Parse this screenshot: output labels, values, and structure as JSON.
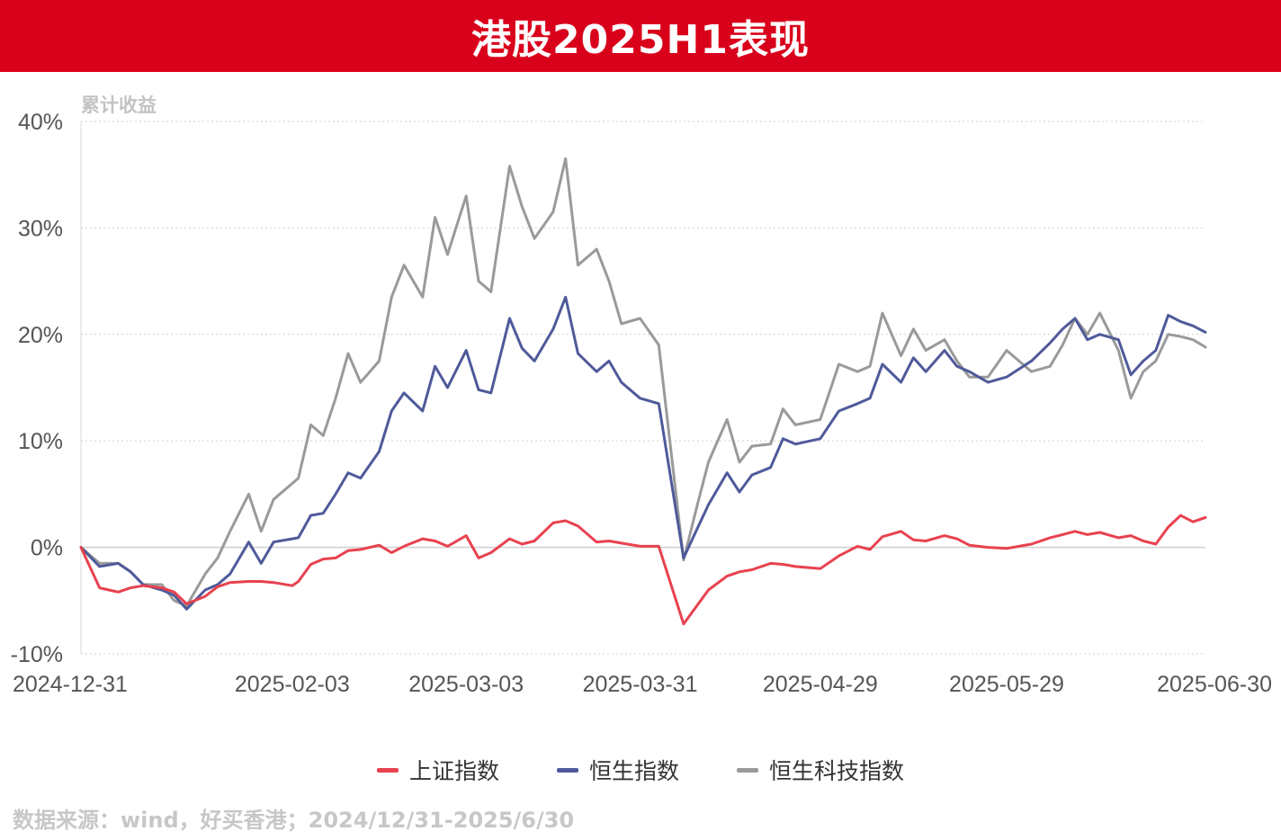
{
  "header": {
    "title": "港股2025H1表现"
  },
  "source": "数据来源：wind，好买香港；2024/12/31-2025/6/30",
  "chart_data": {
    "type": "line",
    "ylabel": "累计收益",
    "xlabel": "",
    "ylim": [
      -10,
      40
    ],
    "yticks": [
      "-10%",
      "0%",
      "10%",
      "20%",
      "30%",
      "40%"
    ],
    "yticks_values": [
      -10,
      0,
      10,
      20,
      30,
      40
    ],
    "xticks": [
      "2024-12-31",
      "2025-02-03",
      "2025-03-03",
      "2025-03-31",
      "2025-04-29",
      "2025-05-29",
      "2025-06-30"
    ],
    "grid": "horizontal dotted",
    "legend_position": "bottom",
    "series": [
      {
        "name": "上证指数",
        "color": "#e8424f",
        "points": [
          [
            "2024-12-31",
            0
          ],
          [
            "2025-01-03",
            -3.8
          ],
          [
            "2025-01-06",
            -4.2
          ],
          [
            "2025-01-08",
            -3.8
          ],
          [
            "2025-01-10",
            -3.6
          ],
          [
            "2025-01-13",
            -3.8
          ],
          [
            "2025-01-15",
            -4.2
          ],
          [
            "2025-01-17",
            -5.3
          ],
          [
            "2025-01-20",
            -4.6
          ],
          [
            "2025-01-22",
            -3.7
          ],
          [
            "2025-01-24",
            -3.3
          ],
          [
            "2025-01-27",
            -3.2
          ],
          [
            "2025-01-29",
            -3.2
          ],
          [
            "2025-01-31",
            -3.3
          ],
          [
            "2025-02-03",
            -3.6
          ],
          [
            "2025-02-04",
            -3.2
          ],
          [
            "2025-02-06",
            -1.6
          ],
          [
            "2025-02-08",
            -1.1
          ],
          [
            "2025-02-10",
            -1.0
          ],
          [
            "2025-02-12",
            -0.3
          ],
          [
            "2025-02-14",
            -0.2
          ],
          [
            "2025-02-17",
            0.2
          ],
          [
            "2025-02-19",
            -0.5
          ],
          [
            "2025-02-21",
            0.1
          ],
          [
            "2025-02-24",
            0.8
          ],
          [
            "2025-02-26",
            0.6
          ],
          [
            "2025-02-28",
            0.1
          ],
          [
            "2025-03-03",
            1.1
          ],
          [
            "2025-03-05",
            -1.0
          ],
          [
            "2025-03-07",
            -0.5
          ],
          [
            "2025-03-10",
            0.8
          ],
          [
            "2025-03-12",
            0.3
          ],
          [
            "2025-03-14",
            0.6
          ],
          [
            "2025-03-17",
            2.3
          ],
          [
            "2025-03-19",
            2.5
          ],
          [
            "2025-03-21",
            2.0
          ],
          [
            "2025-03-24",
            0.5
          ],
          [
            "2025-03-26",
            0.6
          ],
          [
            "2025-03-28",
            0.4
          ],
          [
            "2025-03-31",
            0.1
          ],
          [
            "2025-04-03",
            0.1
          ],
          [
            "2025-04-07",
            -7.2
          ],
          [
            "2025-04-09",
            -5.6
          ],
          [
            "2025-04-11",
            -4.0
          ],
          [
            "2025-04-14",
            -2.7
          ],
          [
            "2025-04-16",
            -2.3
          ],
          [
            "2025-04-18",
            -2.1
          ],
          [
            "2025-04-21",
            -1.5
          ],
          [
            "2025-04-23",
            -1.6
          ],
          [
            "2025-04-25",
            -1.8
          ],
          [
            "2025-04-29",
            -2.0
          ],
          [
            "2025-05-02",
            -0.8
          ],
          [
            "2025-05-05",
            0.1
          ],
          [
            "2025-05-07",
            -0.2
          ],
          [
            "2025-05-09",
            1.0
          ],
          [
            "2025-05-12",
            1.5
          ],
          [
            "2025-05-14",
            0.7
          ],
          [
            "2025-05-16",
            0.6
          ],
          [
            "2025-05-19",
            1.1
          ],
          [
            "2025-05-21",
            0.8
          ],
          [
            "2025-05-23",
            0.2
          ],
          [
            "2025-05-26",
            0.0
          ],
          [
            "2025-05-29",
            -0.1
          ],
          [
            "2025-06-02",
            0.3
          ],
          [
            "2025-06-05",
            0.9
          ],
          [
            "2025-06-07",
            1.2
          ],
          [
            "2025-06-09",
            1.5
          ],
          [
            "2025-06-11",
            1.2
          ],
          [
            "2025-06-13",
            1.4
          ],
          [
            "2025-06-16",
            0.9
          ],
          [
            "2025-06-18",
            1.1
          ],
          [
            "2025-06-20",
            0.6
          ],
          [
            "2025-06-22",
            0.3
          ],
          [
            "2025-06-24",
            1.9
          ],
          [
            "2025-06-26",
            3.0
          ],
          [
            "2025-06-28",
            2.4
          ],
          [
            "2025-06-30",
            2.8
          ]
        ]
      },
      {
        "name": "恒生指数",
        "color": "#4f5a9a",
        "points": [
          [
            "2024-12-31",
            0
          ],
          [
            "2025-01-03",
            -1.8
          ],
          [
            "2025-01-06",
            -1.5
          ],
          [
            "2025-01-08",
            -2.3
          ],
          [
            "2025-01-10",
            -3.5
          ],
          [
            "2025-01-13",
            -4.0
          ],
          [
            "2025-01-15",
            -4.5
          ],
          [
            "2025-01-17",
            -5.8
          ],
          [
            "2025-01-20",
            -4.0
          ],
          [
            "2025-01-22",
            -3.5
          ],
          [
            "2025-01-24",
            -2.5
          ],
          [
            "2025-01-27",
            0.5
          ],
          [
            "2025-01-29",
            -1.5
          ],
          [
            "2025-01-31",
            0.5
          ],
          [
            "2025-02-03",
            0.8
          ],
          [
            "2025-02-04",
            0.9
          ],
          [
            "2025-02-06",
            3.0
          ],
          [
            "2025-02-08",
            3.2
          ],
          [
            "2025-02-10",
            5.0
          ],
          [
            "2025-02-12",
            7.0
          ],
          [
            "2025-02-14",
            6.5
          ],
          [
            "2025-02-17",
            9.0
          ],
          [
            "2025-02-19",
            12.8
          ],
          [
            "2025-02-21",
            14.5
          ],
          [
            "2025-02-24",
            12.8
          ],
          [
            "2025-02-26",
            17.0
          ],
          [
            "2025-02-28",
            15.0
          ],
          [
            "2025-03-03",
            18.5
          ],
          [
            "2025-03-05",
            14.8
          ],
          [
            "2025-03-07",
            14.5
          ],
          [
            "2025-03-10",
            21.5
          ],
          [
            "2025-03-12",
            18.7
          ],
          [
            "2025-03-14",
            17.5
          ],
          [
            "2025-03-17",
            20.5
          ],
          [
            "2025-03-19",
            23.5
          ],
          [
            "2025-03-21",
            18.2
          ],
          [
            "2025-03-24",
            16.5
          ],
          [
            "2025-03-26",
            17.5
          ],
          [
            "2025-03-28",
            15.5
          ],
          [
            "2025-03-31",
            14.0
          ],
          [
            "2025-04-03",
            13.5
          ],
          [
            "2025-04-07",
            -1.0
          ],
          [
            "2025-04-09",
            1.5
          ],
          [
            "2025-04-11",
            4.0
          ],
          [
            "2025-04-14",
            7.0
          ],
          [
            "2025-04-16",
            5.2
          ],
          [
            "2025-04-18",
            6.8
          ],
          [
            "2025-04-21",
            7.5
          ],
          [
            "2025-04-23",
            10.2
          ],
          [
            "2025-04-25",
            9.7
          ],
          [
            "2025-04-29",
            10.2
          ],
          [
            "2025-05-02",
            12.8
          ],
          [
            "2025-05-05",
            13.5
          ],
          [
            "2025-05-07",
            14.0
          ],
          [
            "2025-05-09",
            17.2
          ],
          [
            "2025-05-12",
            15.5
          ],
          [
            "2025-05-14",
            17.8
          ],
          [
            "2025-05-16",
            16.5
          ],
          [
            "2025-05-19",
            18.5
          ],
          [
            "2025-05-21",
            17.0
          ],
          [
            "2025-05-23",
            16.5
          ],
          [
            "2025-05-26",
            15.5
          ],
          [
            "2025-05-29",
            16.0
          ],
          [
            "2025-06-02",
            17.5
          ],
          [
            "2025-06-05",
            19.2
          ],
          [
            "2025-06-07",
            20.5
          ],
          [
            "2025-06-09",
            21.5
          ],
          [
            "2025-06-11",
            19.5
          ],
          [
            "2025-06-13",
            20.0
          ],
          [
            "2025-06-16",
            19.5
          ],
          [
            "2025-06-18",
            16.2
          ],
          [
            "2025-06-20",
            17.5
          ],
          [
            "2025-06-22",
            18.5
          ],
          [
            "2025-06-24",
            21.8
          ],
          [
            "2025-06-26",
            21.2
          ],
          [
            "2025-06-28",
            20.8
          ],
          [
            "2025-06-30",
            20.2
          ]
        ]
      },
      {
        "name": "恒生科技指数",
        "color": "#9a9a9a",
        "points": [
          [
            "2024-12-31",
            0
          ],
          [
            "2025-01-03",
            -1.5
          ],
          [
            "2025-01-06",
            -1.5
          ],
          [
            "2025-01-08",
            -2.3
          ],
          [
            "2025-01-10",
            -3.5
          ],
          [
            "2025-01-13",
            -3.5
          ],
          [
            "2025-01-15",
            -5.0
          ],
          [
            "2025-01-17",
            -5.5
          ],
          [
            "2025-01-20",
            -2.5
          ],
          [
            "2025-01-22",
            -1.0
          ],
          [
            "2025-01-24",
            1.5
          ],
          [
            "2025-01-27",
            5.0
          ],
          [
            "2025-01-29",
            1.5
          ],
          [
            "2025-01-31",
            4.5
          ],
          [
            "2025-02-03",
            6.0
          ],
          [
            "2025-02-04",
            6.5
          ],
          [
            "2025-02-06",
            11.5
          ],
          [
            "2025-02-08",
            10.5
          ],
          [
            "2025-02-10",
            14.0
          ],
          [
            "2025-02-12",
            18.2
          ],
          [
            "2025-02-14",
            15.5
          ],
          [
            "2025-02-17",
            17.5
          ],
          [
            "2025-02-19",
            23.5
          ],
          [
            "2025-02-21",
            26.5
          ],
          [
            "2025-02-24",
            23.5
          ],
          [
            "2025-02-26",
            31.0
          ],
          [
            "2025-02-28",
            27.5
          ],
          [
            "2025-03-03",
            33.0
          ],
          [
            "2025-03-05",
            25.0
          ],
          [
            "2025-03-07",
            24.0
          ],
          [
            "2025-03-10",
            35.8
          ],
          [
            "2025-03-12",
            32.0
          ],
          [
            "2025-03-14",
            29.0
          ],
          [
            "2025-03-17",
            31.5
          ],
          [
            "2025-03-19",
            36.5
          ],
          [
            "2025-03-21",
            26.5
          ],
          [
            "2025-03-24",
            28.0
          ],
          [
            "2025-03-26",
            25.0
          ],
          [
            "2025-03-28",
            21.0
          ],
          [
            "2025-03-31",
            21.5
          ],
          [
            "2025-04-03",
            19.0
          ],
          [
            "2025-04-07",
            -1.2
          ],
          [
            "2025-04-09",
            3.5
          ],
          [
            "2025-04-11",
            8.0
          ],
          [
            "2025-04-14",
            12.0
          ],
          [
            "2025-04-16",
            8.0
          ],
          [
            "2025-04-18",
            9.5
          ],
          [
            "2025-04-21",
            9.7
          ],
          [
            "2025-04-23",
            13.0
          ],
          [
            "2025-04-25",
            11.5
          ],
          [
            "2025-04-29",
            12.0
          ],
          [
            "2025-05-02",
            17.2
          ],
          [
            "2025-05-05",
            16.5
          ],
          [
            "2025-05-07",
            17.0
          ],
          [
            "2025-05-09",
            22.0
          ],
          [
            "2025-05-12",
            18.0
          ],
          [
            "2025-05-14",
            20.5
          ],
          [
            "2025-05-16",
            18.5
          ],
          [
            "2025-05-19",
            19.5
          ],
          [
            "2025-05-21",
            17.5
          ],
          [
            "2025-05-23",
            16.0
          ],
          [
            "2025-05-26",
            16.0
          ],
          [
            "2025-05-29",
            18.5
          ],
          [
            "2025-06-02",
            16.5
          ],
          [
            "2025-06-05",
            17.0
          ],
          [
            "2025-06-07",
            19.0
          ],
          [
            "2025-06-09",
            21.5
          ],
          [
            "2025-06-11",
            20.0
          ],
          [
            "2025-06-13",
            22.0
          ],
          [
            "2025-06-16",
            18.5
          ],
          [
            "2025-06-18",
            14.0
          ],
          [
            "2025-06-20",
            16.5
          ],
          [
            "2025-06-22",
            17.5
          ],
          [
            "2025-06-24",
            20.0
          ],
          [
            "2025-06-26",
            19.8
          ],
          [
            "2025-06-28",
            19.5
          ],
          [
            "2025-06-30",
            18.8
          ]
        ]
      }
    ]
  }
}
